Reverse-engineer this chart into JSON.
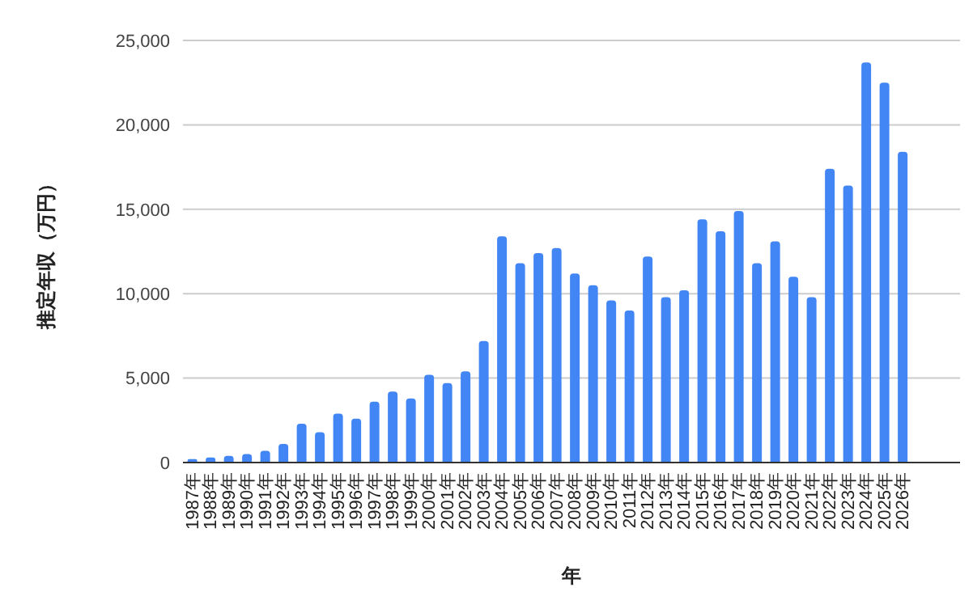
{
  "chart_data": {
    "type": "bar",
    "xlabel": "年",
    "ylabel": "推定年収（万円）",
    "categories": [
      "1987年",
      "1988年",
      "1989年",
      "1990年",
      "1991年",
      "1992年",
      "1993年",
      "1994年",
      "1995年",
      "1996年",
      "1997年",
      "1998年",
      "1999年",
      "2000年",
      "2001年",
      "2002年",
      "2003年",
      "2004年",
      "2005年",
      "2006年",
      "2007年",
      "2008年",
      "2009年",
      "2010年",
      "2011年",
      "2012年",
      "2013年",
      "2014年",
      "2015年",
      "2016年",
      "2017年",
      "2018年",
      "2019年",
      "2020年",
      "2021年",
      "2022年",
      "2023年",
      "2024年",
      "2025年",
      "2026年"
    ],
    "values": [
      200,
      300,
      400,
      500,
      700,
      1100,
      2300,
      1800,
      2900,
      2600,
      3600,
      4200,
      3800,
      5200,
      4700,
      5400,
      7200,
      13400,
      11800,
      12400,
      12700,
      11200,
      10500,
      9600,
      9000,
      12200,
      9800,
      10200,
      14400,
      13700,
      14900,
      11800,
      13100,
      11000,
      9800,
      17400,
      16400,
      23700,
      22500,
      18400
    ],
    "color": "#4285f4",
    "ylim": [
      0,
      25000
    ],
    "yticks": [
      {
        "value": 0,
        "label": "0"
      },
      {
        "value": 5000,
        "label": "5,000"
      },
      {
        "value": 10000,
        "label": "10,000"
      },
      {
        "value": 15000,
        "label": "15,000"
      },
      {
        "value": 20000,
        "label": "20,000"
      },
      {
        "value": 25000,
        "label": "25,000"
      }
    ],
    "grid": "y",
    "legend": false
  }
}
